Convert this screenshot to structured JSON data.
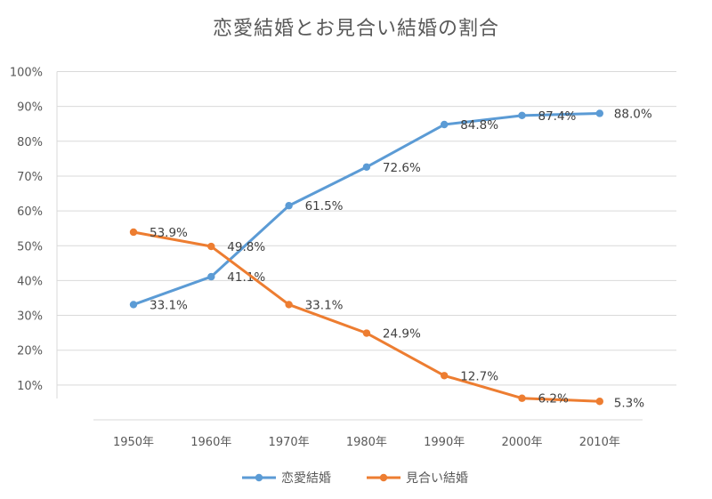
{
  "chart_data": {
    "type": "line",
    "title": "恋愛結婚とお見合い結婚の割合",
    "categories": [
      "1950年",
      "1960年",
      "1970年",
      "1980年",
      "1990年",
      "2000年",
      "2010年"
    ],
    "y_ticks": [
      "10%",
      "20%",
      "30%",
      "40%",
      "50%",
      "60%",
      "70%",
      "80%",
      "90%",
      "100%"
    ],
    "ylim": [
      0,
      100
    ],
    "grid": true,
    "legend_position": "bottom",
    "series": [
      {
        "name": "恋愛結婚",
        "color": "#5b9bd5",
        "values": [
          33.1,
          41.1,
          61.5,
          72.6,
          84.8,
          87.4,
          88.0
        ],
        "labels": [
          "33.1%",
          "41.1%",
          "61.5%",
          "72.6%",
          "84.8%",
          "87.4%",
          "88.0%"
        ]
      },
      {
        "name": "見合い結婚",
        "color": "#ed7d31",
        "values": [
          53.9,
          49.8,
          33.1,
          24.9,
          12.7,
          6.2,
          5.3
        ],
        "labels": [
          "53.9%",
          "49.8%",
          "33.1%",
          "24.9%",
          "12.7%",
          "6.2%",
          "5.3%"
        ]
      }
    ]
  }
}
